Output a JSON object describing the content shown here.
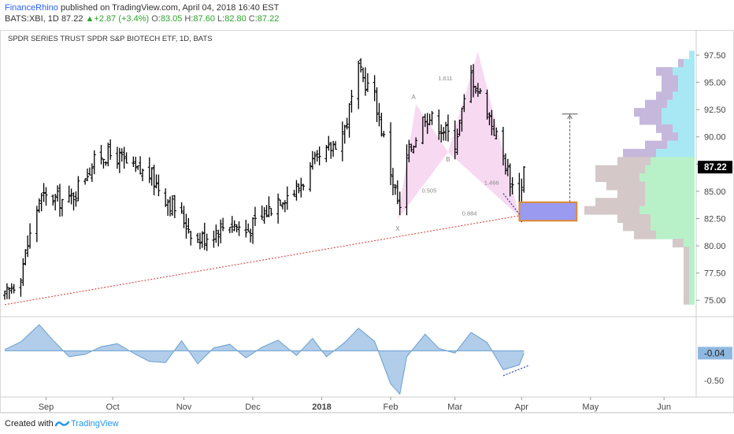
{
  "header": {
    "author": "FinanceRhino",
    "published_text": "published on TradingView.com, April 04, 2018 16:40 EST",
    "symbol": "BATS:XBI, 1D",
    "last": "87.22",
    "change_arrow": "▲",
    "change": "+2.87 (+3.4%)",
    "o_label": "O:",
    "o_value": "83.05",
    "h_label": "H:",
    "h_value": "87.60",
    "l_label": "L:",
    "l_value": "82.80",
    "c_label": "C:",
    "c_value": "87.22"
  },
  "footer": {
    "created_with": "Created with",
    "brand": "TradingView"
  },
  "colors": {
    "bar": "#000000",
    "trendline": "#e05050",
    "pattern_fill": "#f6d2f0",
    "target_box_fill": "#9a9af0",
    "target_box_border": "#e08a2c",
    "price_label_bg": "#000000",
    "osc_fill": "#a8c8e8",
    "osc_line": "#6a9fd0",
    "osc_label_bg": "#8fb8e0",
    "vp_up": "#b8f0c8",
    "vp_up2": "#a8e8f4",
    "vp_down": "#d4c8c8",
    "vp_down2": "#c6b8dc",
    "divergence": "#2040c0"
  },
  "chart_data": {
    "type": "ohlc",
    "title": "SPDR SERIES TRUST SPDR S&P BIOTECH ETF, 1D, BATS",
    "x_tick_labels": [
      "Sep",
      "Oct",
      "Nov",
      "Dec",
      "2018",
      "Feb",
      "Mar",
      "Apr",
      "May",
      "Jun"
    ],
    "y_tick_labels": [
      "97.50",
      "95.00",
      "92.50",
      "90.00",
      "87.50",
      "85.00",
      "82.50",
      "80.00",
      "77.50",
      "75.00"
    ],
    "ylim": [
      73.5,
      98.8
    ],
    "last_price_label": "87.22",
    "close_path": [
      [
        "2017-08-21",
        75.2
      ],
      [
        "2017-08-28",
        77.6
      ],
      [
        "2017-09-05",
        84.3
      ],
      [
        "2017-09-11",
        84.4
      ],
      [
        "2017-09-18",
        84.0
      ],
      [
        "2017-09-25",
        86.6
      ],
      [
        "2017-10-02",
        88.4
      ],
      [
        "2017-10-09",
        88.2
      ],
      [
        "2017-10-16",
        86.9
      ],
      [
        "2017-10-23",
        86.6
      ],
      [
        "2017-10-30",
        84.5
      ],
      [
        "2017-11-06",
        82.7
      ],
      [
        "2017-11-13",
        80.5
      ],
      [
        "2017-11-20",
        81.3
      ],
      [
        "2017-11-27",
        82.2
      ],
      [
        "2017-12-04",
        81.3
      ],
      [
        "2017-12-11",
        82.6
      ],
      [
        "2017-12-18",
        84.4
      ],
      [
        "2017-12-26",
        85.1
      ],
      [
        "2018-01-02",
        87.3
      ],
      [
        "2018-01-08",
        88.4
      ],
      [
        "2018-01-16",
        90.8
      ],
      [
        "2018-01-22",
        96.0
      ],
      [
        "2018-01-29",
        93.7
      ],
      [
        "2018-02-05",
        86.9
      ],
      [
        "2018-02-09",
        83.1
      ],
      [
        "2018-02-12",
        88.1
      ],
      [
        "2018-02-20",
        92.1
      ],
      [
        "2018-02-26",
        91.1
      ],
      [
        "2018-03-05",
        89.6
      ],
      [
        "2018-03-12",
        95.7
      ],
      [
        "2018-03-19",
        92.5
      ],
      [
        "2018-03-26",
        88.2
      ],
      [
        "2018-04-02",
        83.4
      ],
      [
        "2018-04-04",
        87.22
      ]
    ],
    "harmonic_pattern": {
      "points": {
        "X": [
          "2018-02-08",
          82.4
        ],
        "A": [
          "2018-02-16",
          93.0
        ],
        "B": [
          "2018-03-02",
          88.6
        ],
        "C": [
          "2018-03-15",
          97.8
        ],
        "D": [
          "2018-04-02",
          82.7
        ]
      },
      "point_labels": [
        "X",
        "A",
        "B"
      ],
      "ratios": [
        "1.611",
        "0.505",
        "1.466",
        "0.884"
      ]
    },
    "target_zone": {
      "x_start": "2018-04-02",
      "x_end": "2018-04-27",
      "y_low": 82.3,
      "y_high": 84.0
    },
    "projection": {
      "x": "2018-04-24",
      "y_start": 84.0,
      "y_end": 92.1
    },
    "trendline": {
      "start": [
        "2017-08-21",
        74.6
      ],
      "end": [
        "2018-04-03",
        82.8
      ]
    },
    "volume_profile": {
      "price_rows": [
        97.5,
        96.75,
        96.0,
        95.25,
        94.5,
        93.75,
        93.0,
        92.25,
        91.5,
        90.75,
        90.0,
        89.25,
        88.5,
        87.75,
        87.0,
        86.25,
        85.5,
        84.75,
        84.0,
        83.25,
        82.5,
        81.75,
        81.0,
        80.25,
        79.5,
        78.75,
        78.0,
        77.25,
        76.5,
        75.75,
        75.0
      ],
      "up_volume": [
        1,
        2,
        4,
        3,
        3,
        4,
        5,
        6,
        6,
        4,
        3,
        5,
        7,
        8,
        9,
        10,
        9,
        9,
        9,
        10,
        8,
        8,
        7,
        2,
        1,
        1,
        1,
        1,
        1,
        1,
        1
      ],
      "down_volume": [
        0,
        1,
        3,
        3,
        3,
        3,
        4,
        5,
        4,
        3,
        3,
        4,
        6,
        6,
        9,
        8,
        7,
        5,
        9,
        10,
        6,
        5,
        4,
        2,
        1,
        1,
        1,
        1,
        1,
        1,
        1
      ]
    },
    "oscillator": {
      "y_tick_labels": [
        "-0.50"
      ],
      "ylim": [
        -0.78,
        0.55
      ],
      "current_value_label": "-0.04",
      "values": [
        [
          "2017-08-21",
          0.02
        ],
        [
          "2017-08-28",
          0.15
        ],
        [
          "2017-09-05",
          0.44
        ],
        [
          "2017-09-11",
          0.18
        ],
        [
          "2017-09-18",
          -0.1
        ],
        [
          "2017-09-25",
          -0.06
        ],
        [
          "2017-10-02",
          0.07
        ],
        [
          "2017-10-09",
          0.12
        ],
        [
          "2017-10-16",
          -0.04
        ],
        [
          "2017-10-23",
          -0.18
        ],
        [
          "2017-10-30",
          -0.2
        ],
        [
          "2017-11-06",
          0.17
        ],
        [
          "2017-11-13",
          -0.22
        ],
        [
          "2017-11-20",
          0.05
        ],
        [
          "2017-11-27",
          0.11
        ],
        [
          "2017-12-04",
          -0.12
        ],
        [
          "2017-12-11",
          0.06
        ],
        [
          "2017-12-18",
          0.18
        ],
        [
          "2017-12-26",
          -0.08
        ],
        [
          "2018-01-02",
          0.21
        ],
        [
          "2018-01-08",
          -0.1
        ],
        [
          "2018-01-16",
          0.14
        ],
        [
          "2018-01-22",
          0.38
        ],
        [
          "2018-01-29",
          0.16
        ],
        [
          "2018-02-05",
          -0.56
        ],
        [
          "2018-02-09",
          -0.73
        ],
        [
          "2018-02-12",
          -0.1
        ],
        [
          "2018-02-20",
          0.28
        ],
        [
          "2018-02-26",
          0.04
        ],
        [
          "2018-03-05",
          -0.04
        ],
        [
          "2018-03-12",
          0.31
        ],
        [
          "2018-03-19",
          0.14
        ],
        [
          "2018-03-26",
          -0.32
        ],
        [
          "2018-04-02",
          -0.24
        ],
        [
          "2018-04-04",
          -0.04
        ]
      ],
      "divergence_line": {
        "start": [
          "2018-03-26",
          -0.42
        ],
        "end": [
          "2018-04-06",
          -0.25
        ]
      }
    }
  }
}
